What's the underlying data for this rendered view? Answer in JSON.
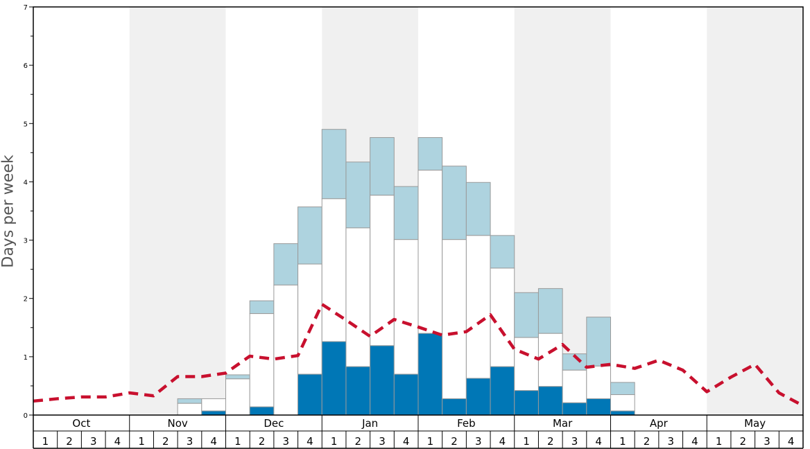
{
  "chart_data": {
    "type": "bar",
    "ylabel": "Days per week",
    "ylim": [
      0,
      7
    ],
    "yticks": [
      "0",
      "1",
      "2",
      "3",
      "4",
      "5",
      "6",
      "7"
    ],
    "months": [
      "Oct",
      "Nov",
      "Dec",
      "Jan",
      "Feb",
      "Mar",
      "Apr",
      "May"
    ],
    "weeks": [
      "1",
      "2",
      "3",
      "4"
    ],
    "colors": {
      "dark": "#0077b6",
      "white": "#ffffff",
      "light": "#aed3df",
      "line": "#c8102e",
      "shade": "#f0f0f0"
    },
    "bars": [
      [
        0,
        0,
        0
      ],
      [
        0,
        0,
        0
      ],
      [
        0,
        0,
        0
      ],
      [
        0,
        0,
        0
      ],
      [
        0,
        0,
        0
      ],
      [
        0,
        0,
        0
      ],
      [
        0,
        0.2,
        0.28
      ],
      [
        0.07,
        0.28,
        0.28
      ],
      [
        0,
        0.62,
        0.69
      ],
      [
        0.14,
        1.74,
        1.96
      ],
      [
        0,
        2.23,
        2.94
      ],
      [
        0.7,
        2.59,
        3.57
      ],
      [
        1.26,
        3.71,
        4.9
      ],
      [
        0.83,
        3.21,
        4.34
      ],
      [
        1.19,
        3.77,
        4.76
      ],
      [
        0.7,
        3.01,
        3.92
      ],
      [
        1.4,
        4.2,
        4.76
      ],
      [
        0.28,
        3.01,
        4.27
      ],
      [
        0.63,
        3.08,
        3.99
      ],
      [
        0.83,
        2.52,
        3.08
      ],
      [
        0.42,
        1.33,
        2.1
      ],
      [
        0.49,
        1.4,
        2.17
      ],
      [
        0.21,
        0.77,
        1.05
      ],
      [
        0.28,
        0.84,
        1.68
      ],
      [
        0.07,
        0.35,
        0.56
      ],
      [
        0,
        0,
        0
      ],
      [
        0,
        0,
        0
      ],
      [
        0,
        0,
        0
      ],
      [
        0,
        0,
        0
      ],
      [
        0,
        0,
        0
      ],
      [
        0,
        0,
        0
      ],
      [
        0,
        0,
        0
      ]
    ],
    "average_line": [
      0.24,
      0.28,
      0.31,
      0.31,
      0.38,
      0.33,
      0.66,
      0.66,
      0.72,
      1.01,
      0.96,
      1.02,
      1.9,
      1.63,
      1.35,
      1.64,
      1.51,
      1.37,
      1.43,
      1.72,
      1.13,
      0.96,
      1.21,
      0.82,
      0.87,
      0.8,
      0.94,
      0.77,
      0.4,
      0.65,
      0.87,
      0.38,
      0.16
    ]
  }
}
